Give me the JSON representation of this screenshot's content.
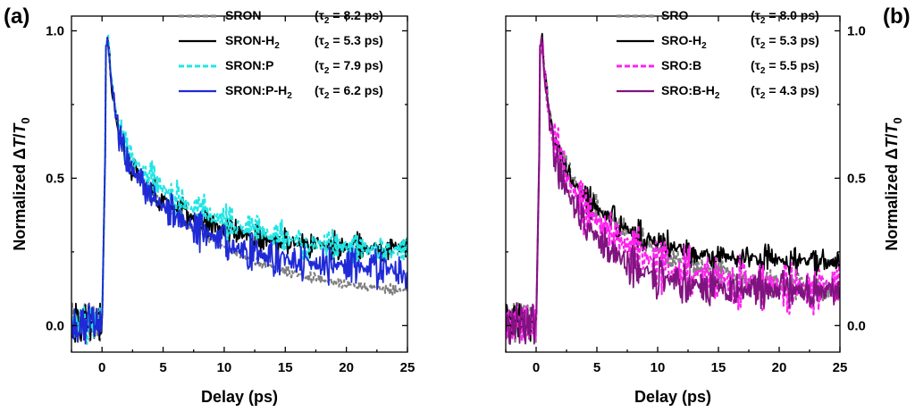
{
  "chart_data": [
    {
      "type": "line",
      "panel_label": "(a)",
      "xlabel": "Delay (ps)",
      "ylabel": "Normalized ΔT/T0",
      "xlim": [
        -2.5,
        25
      ],
      "ylim": [
        -0.09,
        1.05
      ],
      "xticks": [
        "0",
        "5",
        "10",
        "15",
        "20",
        "25"
      ],
      "yticks": [
        "0.0",
        "0.5",
        "1.0"
      ],
      "y_axis_side": "left",
      "legend_position": "top-right",
      "series": [
        {
          "name": "SRON",
          "tau": "(τ2 = 8.2 ps)",
          "color": "#808080",
          "dash": "dashed",
          "tau_ps": 8.2,
          "plateau": 0.09,
          "noise": 0.012
        },
        {
          "name": "SRON-H2",
          "tau": "(τ2 = 5.3 ps)",
          "color": "#000000",
          "dash": "solid",
          "tau_ps": 5.3,
          "plateau": 0.26,
          "noise": 0.035
        },
        {
          "name": "SRON:P",
          "tau": "(τ2 = 7.9 ps)",
          "color": "#22e5e5",
          "dash": "dashed",
          "tau_ps": 7.9,
          "plateau": 0.23,
          "noise": 0.04
        },
        {
          "name": "SRON:P-H2",
          "tau": "(τ2 = 6.2 ps)",
          "color": "#1f2ad6",
          "dash": "solid",
          "tau_ps": 6.2,
          "plateau": 0.18,
          "noise": 0.045
        }
      ]
    },
    {
      "type": "line",
      "panel_label": "(b)",
      "xlabel": "Delay (ps)",
      "ylabel": "Normalized ΔT/T0",
      "xlim": [
        -2.5,
        25
      ],
      "ylim": [
        -0.09,
        1.05
      ],
      "xticks": [
        "0",
        "5",
        "10",
        "15",
        "20",
        "25"
      ],
      "yticks": [
        "0.0",
        "0.5",
        "1.0"
      ],
      "y_axis_side": "right",
      "legend_position": "top-right",
      "series": [
        {
          "name": "SRO",
          "tau": "(τ2 = 8.0 ps)",
          "color": "#808080",
          "dash": "dashed",
          "tau_ps": 8.0,
          "plateau": 0.09,
          "noise": 0.03
        },
        {
          "name": "SRO-H2",
          "tau": "(τ2 = 5.3 ps)",
          "color": "#000000",
          "dash": "solid",
          "tau_ps": 5.3,
          "plateau": 0.21,
          "noise": 0.035
        },
        {
          "name": "SRO:B",
          "tau": "(τ2 = 5.5 ps)",
          "color": "#ff22ee",
          "dash": "dashed",
          "tau_ps": 5.5,
          "plateau": 0.12,
          "noise": 0.065
        },
        {
          "name": "SRO:B-H2",
          "tau": "(τ2 = 4.3 ps)",
          "color": "#80147f",
          "dash": "solid",
          "tau_ps": 4.3,
          "plateau": 0.11,
          "noise": 0.05
        }
      ]
    }
  ]
}
